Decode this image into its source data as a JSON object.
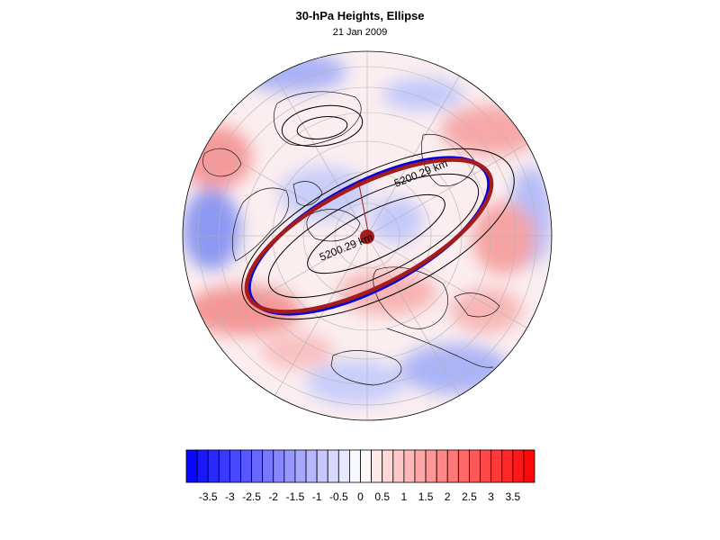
{
  "header": {
    "title": "30-hPa Heights, Ellipse",
    "date": "21 Jan 2009"
  },
  "map": {
    "projection": "north-polar-orthographic",
    "contour_labels": [
      "5200.29 km",
      "5200.29 km"
    ],
    "colors": {
      "ellipse_fit": "#a51c1c",
      "vortex_edge": "#0000dd",
      "contour_line": "#000000",
      "coast_line": "#000000",
      "grid_line": "#b0b0b0",
      "anomaly_positive": "#ff3333",
      "anomaly_negative": "#3b3bff"
    }
  },
  "colorbar": {
    "tick_labels": [
      "-3.5",
      "-3",
      "-2.5",
      "-2",
      "-1.5",
      "-1",
      "-0.5",
      "0",
      "0.5",
      "1",
      "1.5",
      "2",
      "2.5",
      "3",
      "3.5"
    ],
    "levels": [
      -4,
      -3.75,
      -3.5,
      -3.25,
      -3,
      -2.75,
      -2.5,
      -2.25,
      -2,
      -1.75,
      -1.5,
      -1.25,
      -1,
      -0.75,
      -0.5,
      -0.25,
      0,
      0.25,
      0.5,
      0.75,
      1,
      1.25,
      1.5,
      1.75,
      2,
      2.25,
      2.5,
      2.75,
      3,
      3.25,
      3.5,
      3.75,
      4
    ],
    "color_min": "#0000ff",
    "color_mid": "#ffffff",
    "color_max": "#ff0000"
  }
}
